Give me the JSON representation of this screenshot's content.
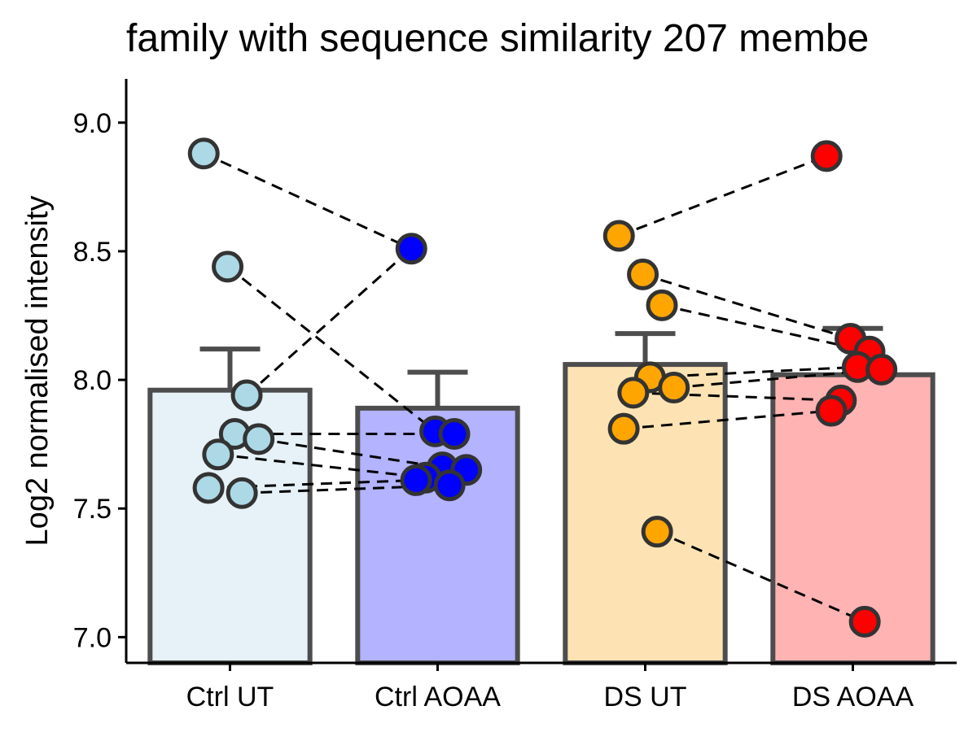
{
  "chart_data": {
    "type": "bar",
    "title": "family with sequence similarity 207 membe",
    "xlabel": "",
    "ylabel": "Log2 normalised intensity",
    "ylim": [
      6.9,
      9.17
    ],
    "yticks": [
      "7.0",
      "7.5",
      "8.0",
      "8.5",
      "9.0"
    ],
    "ytick_values": [
      7.0,
      7.5,
      8.0,
      8.5,
      9.0
    ],
    "grid": false,
    "legend": "none",
    "categories": [
      "Ctrl UT",
      "Ctrl AOAA",
      "DS UT",
      "DS AOAA"
    ],
    "values": [
      7.96,
      7.89,
      8.06,
      8.02
    ],
    "errors": [
      0.16,
      0.14,
      0.12,
      0.18
    ],
    "bar_fills": [
      "#e6f2f8",
      "#b3b3ff",
      "#fde3b4",
      "#ffb3b3"
    ],
    "point_fills": [
      "#add8e6",
      "#0000ff",
      "#ffa500",
      "#ff0000"
    ],
    "bar_stroke": "#4d4d4d",
    "points": [
      [
        8.88,
        8.44,
        7.94,
        7.79,
        7.77,
        7.71,
        7.58,
        7.56
      ],
      [
        8.51,
        7.8,
        7.79,
        7.66,
        7.65,
        7.62,
        7.61,
        7.59
      ],
      [
        8.56,
        8.41,
        8.29,
        8.01,
        7.97,
        7.95,
        7.81,
        7.41
      ],
      [
        8.87,
        8.16,
        8.11,
        8.05,
        8.04,
        7.92,
        7.88,
        7.06
      ]
    ],
    "pairs": [
      {
        "from": [
          0,
          8.88
        ],
        "to": [
          1,
          8.51
        ]
      },
      {
        "from": [
          0,
          8.44
        ],
        "to": [
          1,
          7.8
        ]
      },
      {
        "from": [
          0,
          7.94
        ],
        "to": [
          1,
          8.51
        ]
      },
      {
        "from": [
          0,
          7.79
        ],
        "to": [
          1,
          7.79
        ]
      },
      {
        "from": [
          0,
          7.77
        ],
        "to": [
          1,
          7.66
        ]
      },
      {
        "from": [
          0,
          7.71
        ],
        "to": [
          1,
          7.62
        ]
      },
      {
        "from": [
          0,
          7.58
        ],
        "to": [
          1,
          7.61
        ]
      },
      {
        "from": [
          0,
          7.56
        ],
        "to": [
          1,
          7.59
        ]
      },
      {
        "from": [
          2,
          8.56
        ],
        "to": [
          3,
          8.87
        ]
      },
      {
        "from": [
          2,
          8.41
        ],
        "to": [
          3,
          8.16
        ]
      },
      {
        "from": [
          2,
          8.29
        ],
        "to": [
          3,
          8.11
        ]
      },
      {
        "from": [
          2,
          8.01
        ],
        "to": [
          3,
          8.05
        ]
      },
      {
        "from": [
          2,
          7.97
        ],
        "to": [
          3,
          8.04
        ]
      },
      {
        "from": [
          2,
          7.95
        ],
        "to": [
          3,
          7.92
        ]
      },
      {
        "from": [
          2,
          7.81
        ],
        "to": [
          3,
          7.88
        ]
      },
      {
        "from": [
          2,
          7.41
        ],
        "to": [
          3,
          7.06
        ]
      }
    ]
  }
}
